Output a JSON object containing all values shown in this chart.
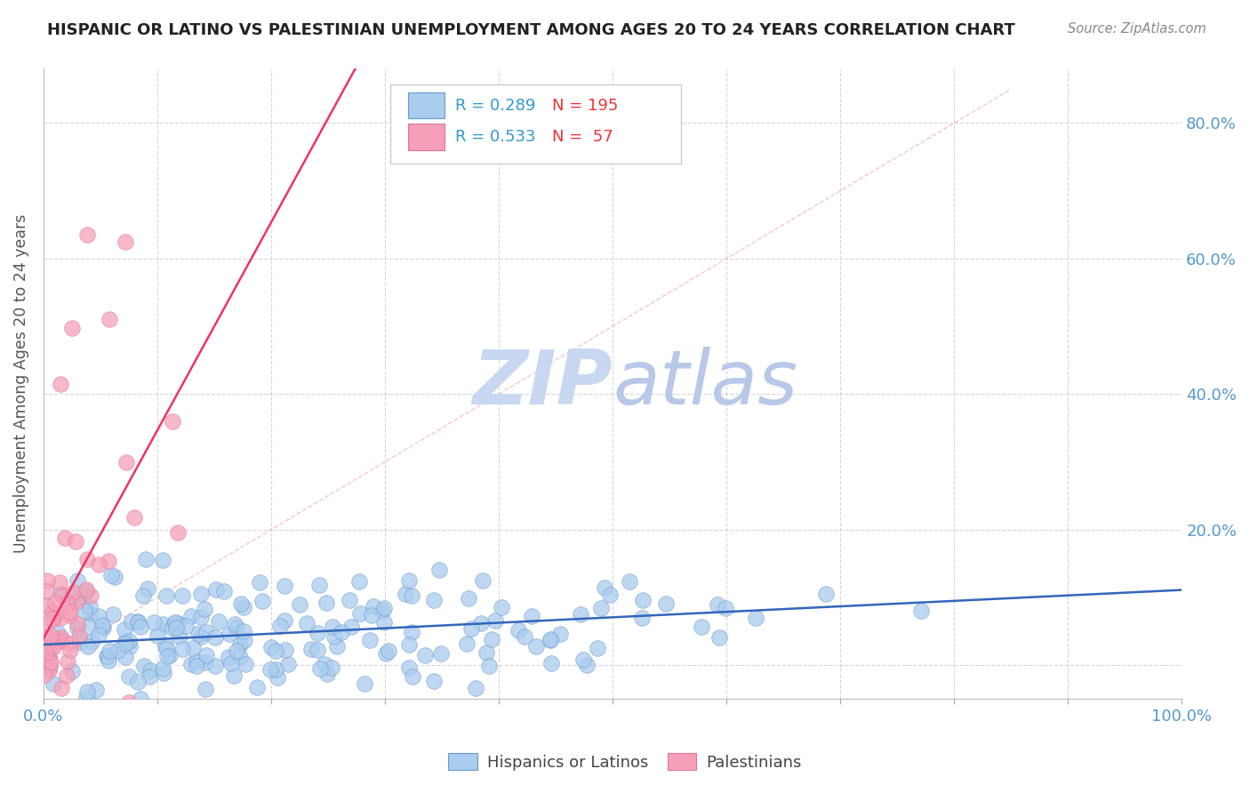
{
  "title": "HISPANIC OR LATINO VS PALESTINIAN UNEMPLOYMENT AMONG AGES 20 TO 24 YEARS CORRELATION CHART",
  "source": "Source: ZipAtlas.com",
  "ylabel": "Unemployment Among Ages 20 to 24 years",
  "xlim": [
    0.0,
    1.0
  ],
  "ylim": [
    -0.05,
    0.88
  ],
  "x_ticks": [
    0.0,
    0.1,
    0.2,
    0.3,
    0.4,
    0.5,
    0.6,
    0.7,
    0.8,
    0.9,
    1.0
  ],
  "y_ticks": [
    0.0,
    0.2,
    0.4,
    0.6,
    0.8
  ],
  "hispanic_R": 0.289,
  "hispanic_N": 195,
  "palestinian_R": 0.533,
  "palestinian_N": 57,
  "hispanic_color": "#aaccee",
  "hispanic_edge": "#6699cc",
  "hispanic_line_color": "#3366bb",
  "palestinian_color": "#f5a0b8",
  "palestinian_edge": "#dd7799",
  "palestinian_line_color": "#ee3366",
  "background_color": "#ffffff",
  "grid_color": "#cccccc",
  "watermark_zip_color": "#c8d8f0",
  "watermark_atlas_color": "#b8c8e8",
  "title_color": "#222222",
  "axis_label_color": "#555555",
  "tick_label_color": "#5599cc",
  "legend_R_color": "#3399cc",
  "legend_N_color": "#ee3333"
}
